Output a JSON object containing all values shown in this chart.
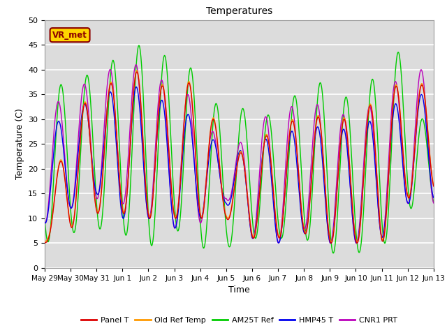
{
  "title": "Temperatures",
  "xlabel": "Time",
  "ylabel": "Temperature (C)",
  "ylim": [
    0,
    50
  ],
  "background_color": "#dcdcdc",
  "grid_color": "white",
  "annotation_text": "VR_met",
  "annotation_color": "#8B0000",
  "annotation_bg": "#FFD700",
  "series": [
    {
      "label": "Panel T",
      "color": "#dd0000"
    },
    {
      "label": "Old Ref Temp",
      "color": "#ff9900"
    },
    {
      "label": "AM25T Ref",
      "color": "#00cc00"
    },
    {
      "label": "HMP45 T",
      "color": "#0000ee"
    },
    {
      "label": "CNR1 PRT",
      "color": "#bb00bb"
    }
  ],
  "x_tick_labels": [
    "May 29",
    "May 30",
    "May 31",
    "Jun 1",
    "Jun 2",
    "Jun 3",
    "Jun 4",
    "Jun 5",
    "Jun 6",
    "Jun 7",
    "Jun 8",
    "Jun 9",
    "Jun 10",
    "Jun 11",
    "Jun 12",
    "Jun 13"
  ],
  "yticks": [
    0,
    5,
    10,
    15,
    20,
    25,
    30,
    35,
    40,
    45,
    50
  ]
}
